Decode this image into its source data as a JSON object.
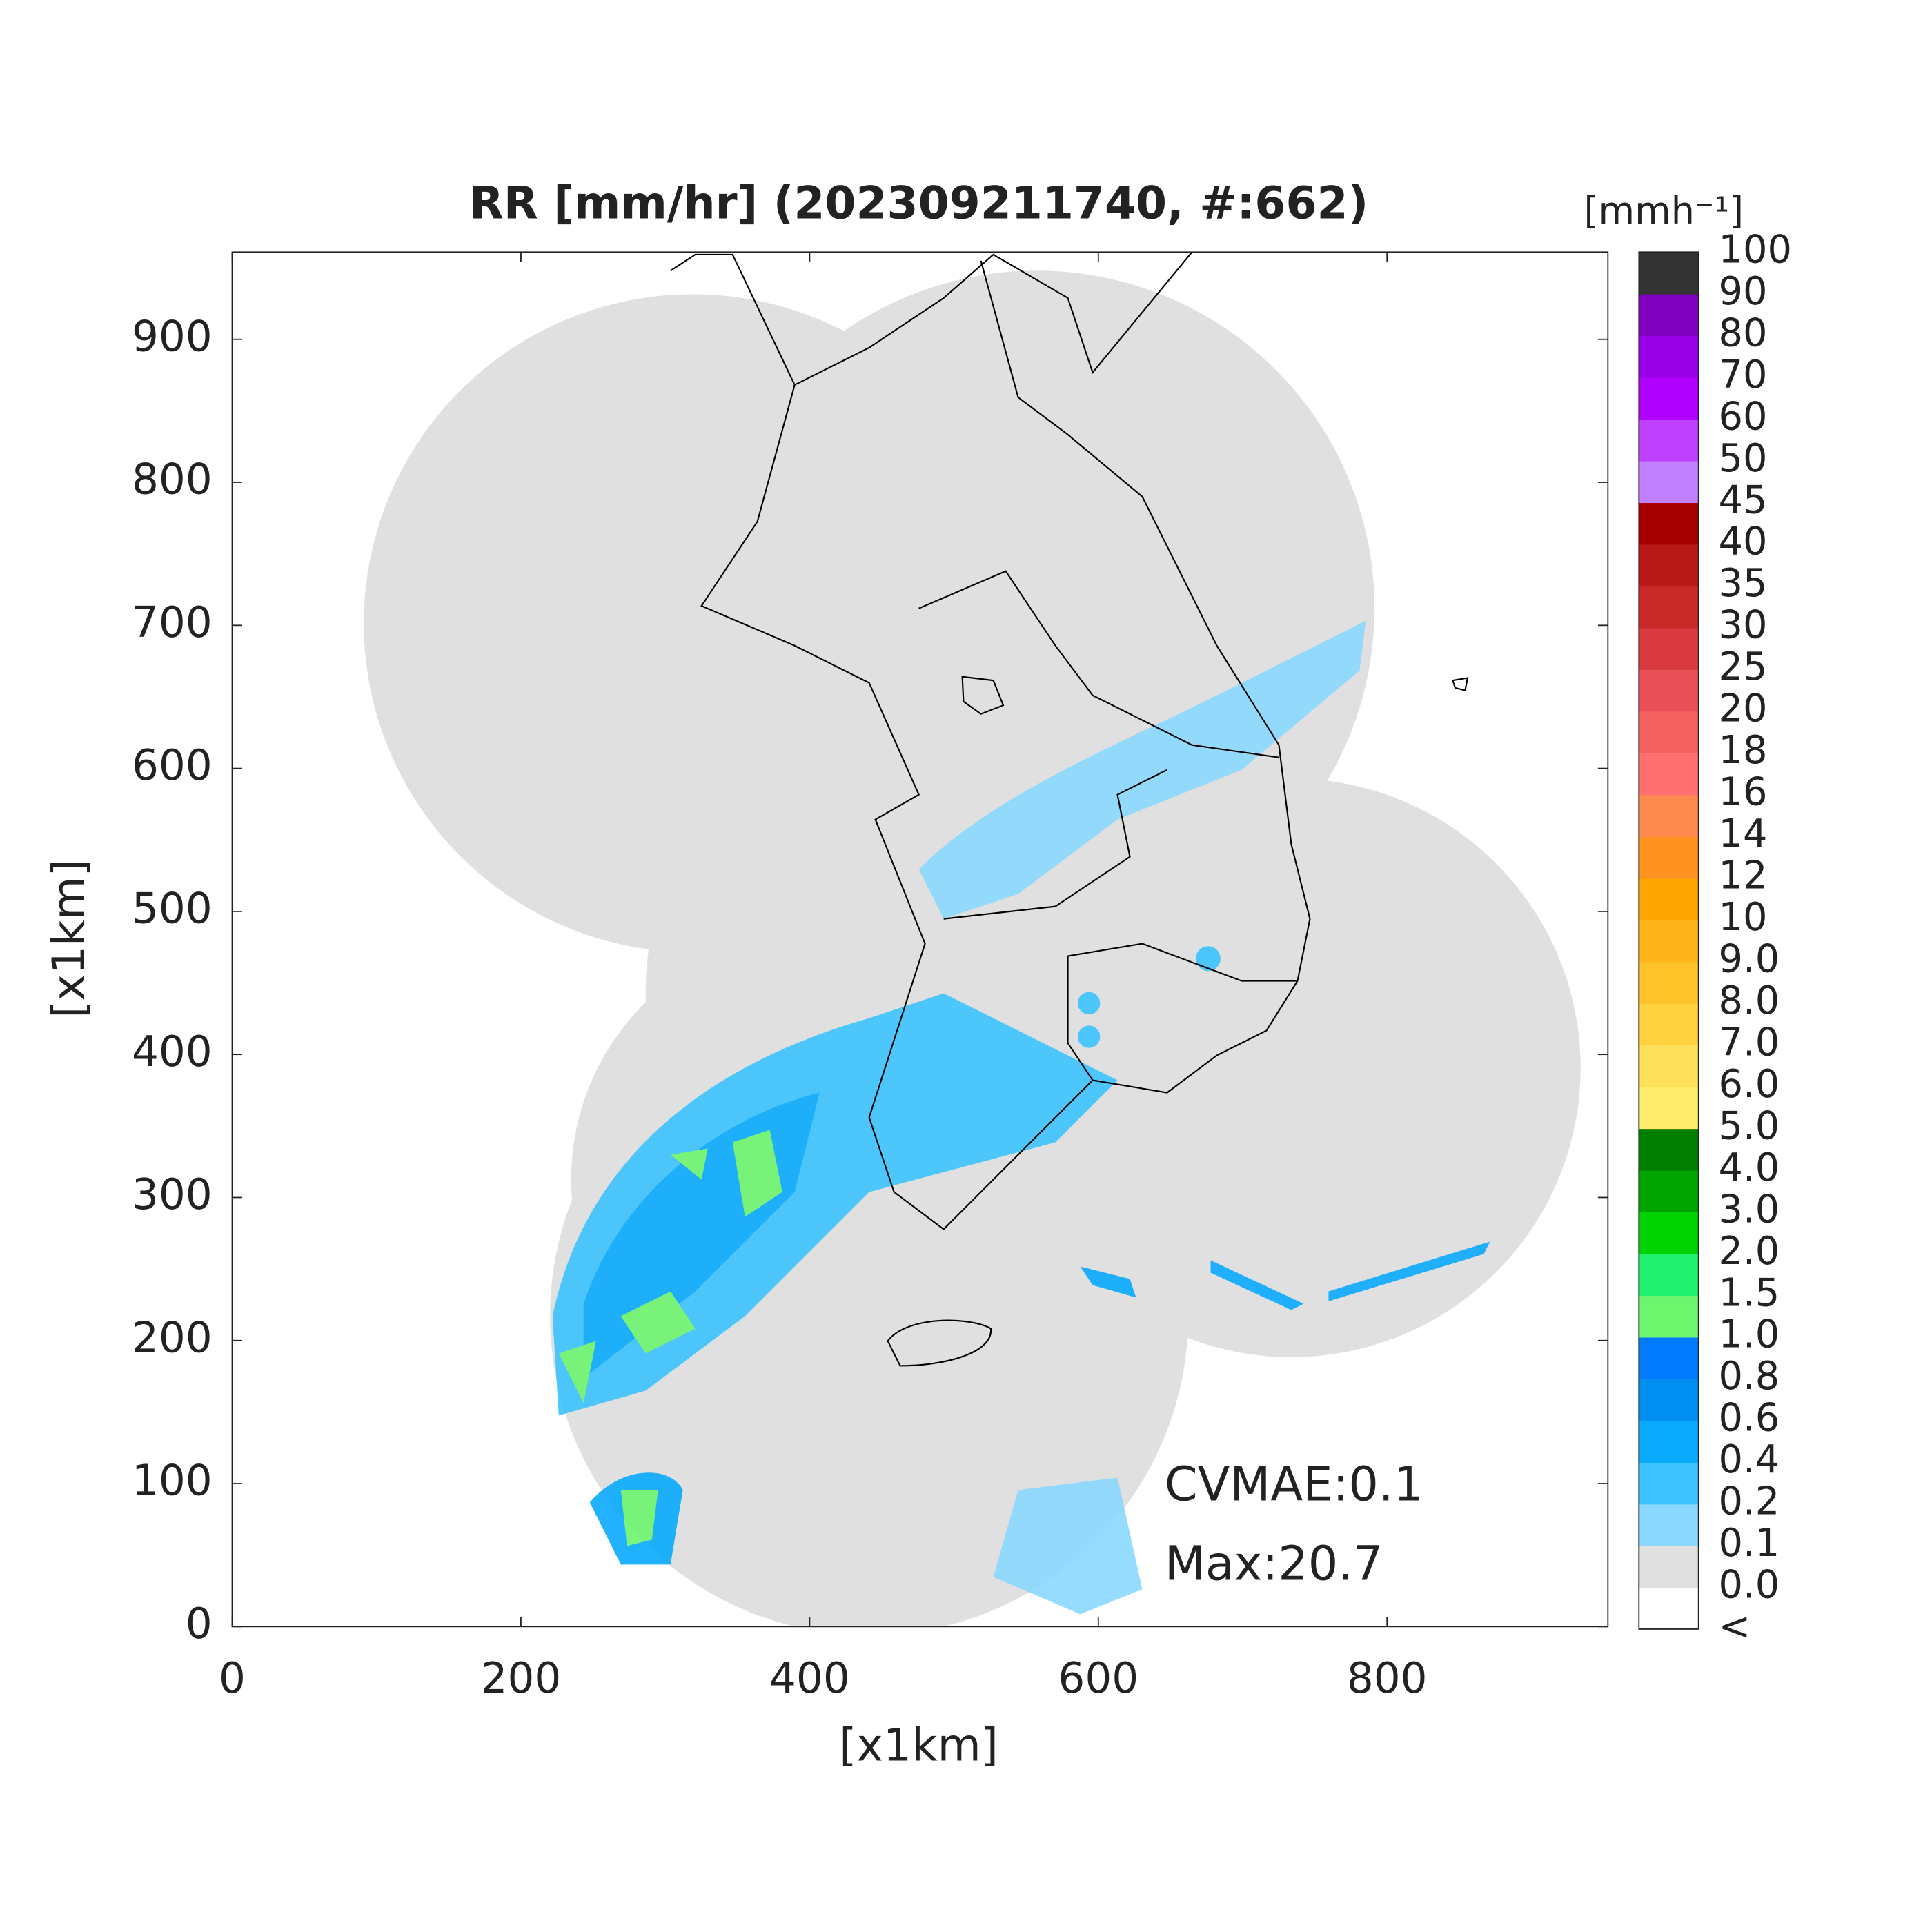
{
  "chart_data": {
    "type": "map",
    "title": "RR [mm/hr] (202309211740, #:662)",
    "xlabel": "[x1km]",
    "ylabel": "[x1km]",
    "xlim": [
      0,
      953
    ],
    "ylim": [
      0,
      961
    ],
    "xticks": [
      0,
      200,
      400,
      600,
      800
    ],
    "yticks": [
      0,
      100,
      200,
      300,
      400,
      500,
      600,
      700,
      800,
      900
    ],
    "annotations": [
      "CVMAE:0.1",
      "Max:20.7"
    ],
    "colorbar": {
      "unit": "[mmh⁻¹]",
      "labels": [
        "<",
        "0.0",
        "0.1",
        "0.2",
        "0.4",
        "0.6",
        "0.8",
        "1.0",
        "1.5",
        "2.0",
        "3.0",
        "4.0",
        "5.0",
        "6.0",
        "7.0",
        "8.0",
        "9.0",
        "10",
        "12",
        "14",
        "16",
        "18",
        "20",
        "25",
        "30",
        "35",
        "40",
        "45",
        "50",
        "60",
        "70",
        "80",
        "90",
        "100"
      ],
      "colors": [
        "#ffffff",
        "#e0e0e0",
        "#8ad8ff",
        "#3dc3ff",
        "#0aaaff",
        "#008ff0",
        "#007bff",
        "#6ef56e",
        "#20f070",
        "#00d400",
        "#00a400",
        "#007e00",
        "#ffee6e",
        "#ffe05a",
        "#ffd23e",
        "#ffc32a",
        "#ffb41a",
        "#ffa500",
        "#ff9220",
        "#ff8a50",
        "#ff7070",
        "#f56060",
        "#e85058",
        "#d83a40",
        "#c82828",
        "#b81818",
        "#a80000",
        "#c080ff",
        "#c040ff",
        "#b000ff",
        "#9a00e8",
        "#8000c0",
        "#333333"
      ]
    }
  }
}
